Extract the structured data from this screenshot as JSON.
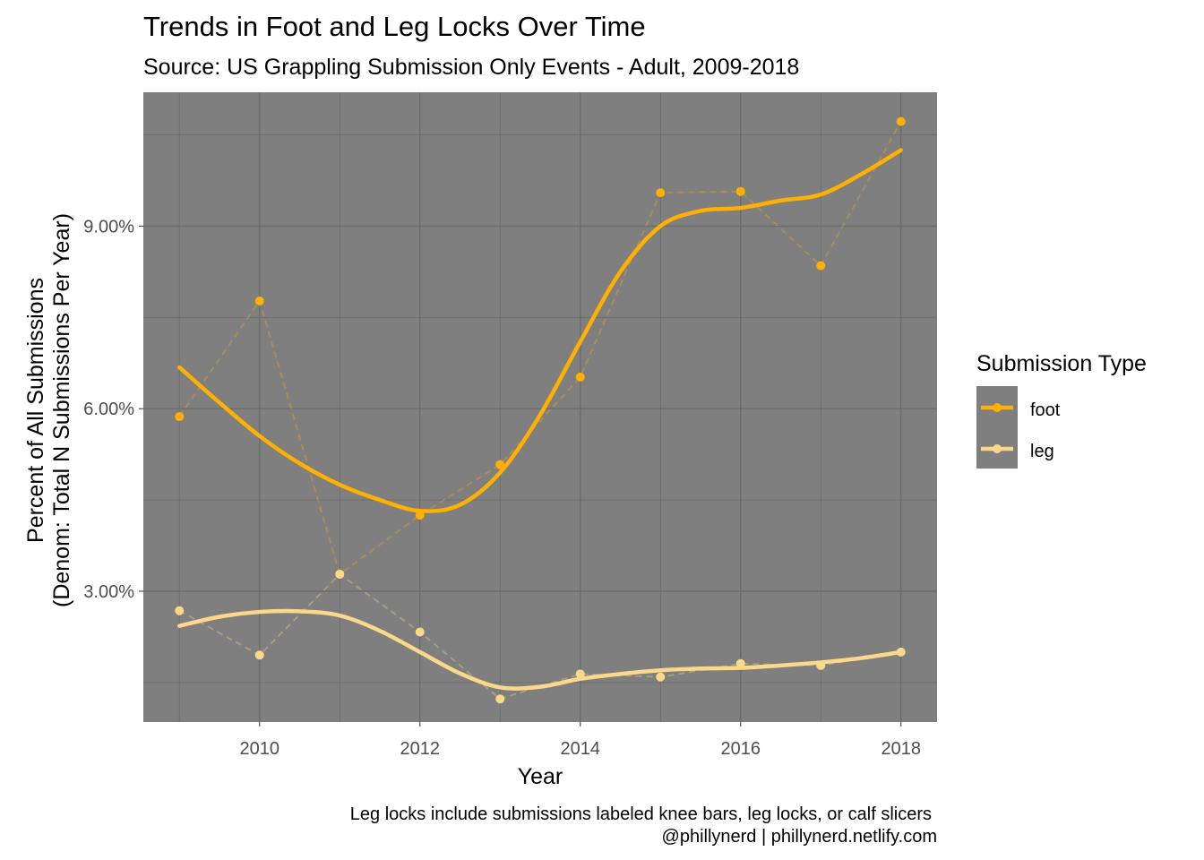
{
  "chart_data": {
    "type": "line",
    "title": "Trends in Foot and Leg Locks Over Time",
    "subtitle": "Source: US Grappling Submission Only Events - Adult, 2009-2018",
    "xlabel": "Year",
    "ylabel_line1": "Percent of All Submissions",
    "ylabel_line2": "(Denom: Total N Submissions Per Year)",
    "xlim": [
      2008.55,
      2018.45
    ],
    "ylim": [
      0.85,
      11.2
    ],
    "x_ticks": [
      2010,
      2012,
      2014,
      2016,
      2018
    ],
    "y_ticks": [
      3,
      6,
      9
    ],
    "y_tick_labels": [
      "3.00%",
      "6.00%",
      "9.00%"
    ],
    "grid": true,
    "panel_background": "#7f7f7f",
    "grid_color": "#6b6b6b",
    "legend": {
      "title": "Submission Type",
      "position": "right"
    },
    "series": [
      {
        "name": "foot",
        "color": "#ffb000",
        "x": [
          2009,
          2010,
          2011,
          2012,
          2013,
          2014,
          2015,
          2016,
          2017,
          2018
        ],
        "y": [
          5.87,
          7.77,
          3.28,
          4.25,
          5.08,
          6.52,
          9.55,
          9.57,
          8.35,
          10.72
        ],
        "smooth": [
          [
            2009,
            6.68
          ],
          [
            2009.5,
            6.1
          ],
          [
            2010,
            5.55
          ],
          [
            2010.5,
            5.1
          ],
          [
            2011,
            4.75
          ],
          [
            2011.5,
            4.5
          ],
          [
            2012,
            4.32
          ],
          [
            2012.5,
            4.42
          ],
          [
            2013,
            4.95
          ],
          [
            2013.5,
            5.9
          ],
          [
            2014,
            7.1
          ],
          [
            2014.5,
            8.25
          ],
          [
            2015,
            9.0
          ],
          [
            2015.5,
            9.25
          ],
          [
            2016,
            9.3
          ],
          [
            2016.5,
            9.42
          ],
          [
            2017,
            9.52
          ],
          [
            2017.5,
            9.85
          ],
          [
            2018,
            10.25
          ]
        ]
      },
      {
        "name": "leg",
        "color": "#fcd98a",
        "x": [
          2009,
          2010,
          2011,
          2012,
          2013,
          2014,
          2015,
          2016,
          2017,
          2018
        ],
        "y": [
          2.68,
          1.95,
          3.28,
          2.33,
          1.23,
          1.64,
          1.59,
          1.81,
          1.78,
          2.0
        ],
        "smooth": [
          [
            2009,
            2.43
          ],
          [
            2009.5,
            2.58
          ],
          [
            2010,
            2.66
          ],
          [
            2010.5,
            2.67
          ],
          [
            2011,
            2.6
          ],
          [
            2011.5,
            2.35
          ],
          [
            2012,
            2.0
          ],
          [
            2012.5,
            1.65
          ],
          [
            2013,
            1.42
          ],
          [
            2013.5,
            1.43
          ],
          [
            2014,
            1.56
          ],
          [
            2014.5,
            1.64
          ],
          [
            2015,
            1.7
          ],
          [
            2015.5,
            1.73
          ],
          [
            2016,
            1.74
          ],
          [
            2016.5,
            1.78
          ],
          [
            2017,
            1.83
          ],
          [
            2017.5,
            1.9
          ],
          [
            2018,
            2.0
          ]
        ]
      }
    ]
  },
  "caption_line1": "Leg locks include submissions labeled knee bars, leg locks, or calf slicers",
  "caption_line2": "@phillynerd | phillynerd.netlify.com"
}
